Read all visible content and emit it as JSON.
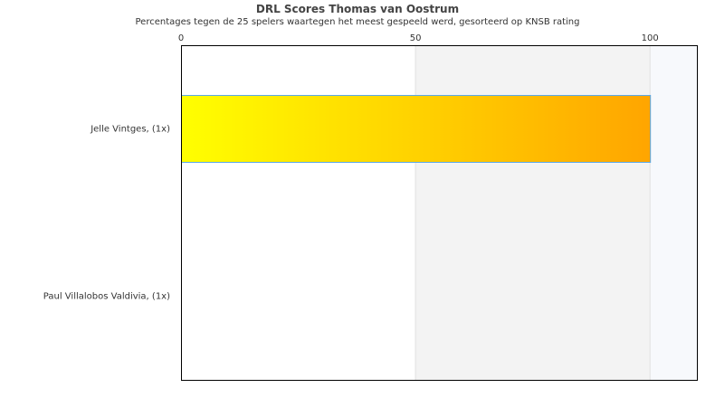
{
  "chart_data": {
    "type": "bar",
    "orientation": "horizontal",
    "title": "DRL Scores Thomas van Oostrum",
    "subtitle": "Percentages tegen de 25 spelers waartegen het meest gespeeld werd, gesorteerd op KNSB rating",
    "categories": [
      "Jelle Vintges,  (1x)",
      "Paul Villalobos Valdivia,  (1x)"
    ],
    "values": [
      100,
      0
    ],
    "xlim": [
      0,
      110
    ],
    "xticks": [
      0,
      50,
      100
    ],
    "xaxis_position": "top",
    "bands": [
      {
        "from": 50,
        "to": 100,
        "color": "#f3f3f3"
      },
      {
        "from": 100,
        "to": 110,
        "color": "#f7f9fc"
      }
    ],
    "bar_gradient": [
      "#ffff00",
      "#ffa500"
    ],
    "bar_border": "#5aa8e8"
  }
}
